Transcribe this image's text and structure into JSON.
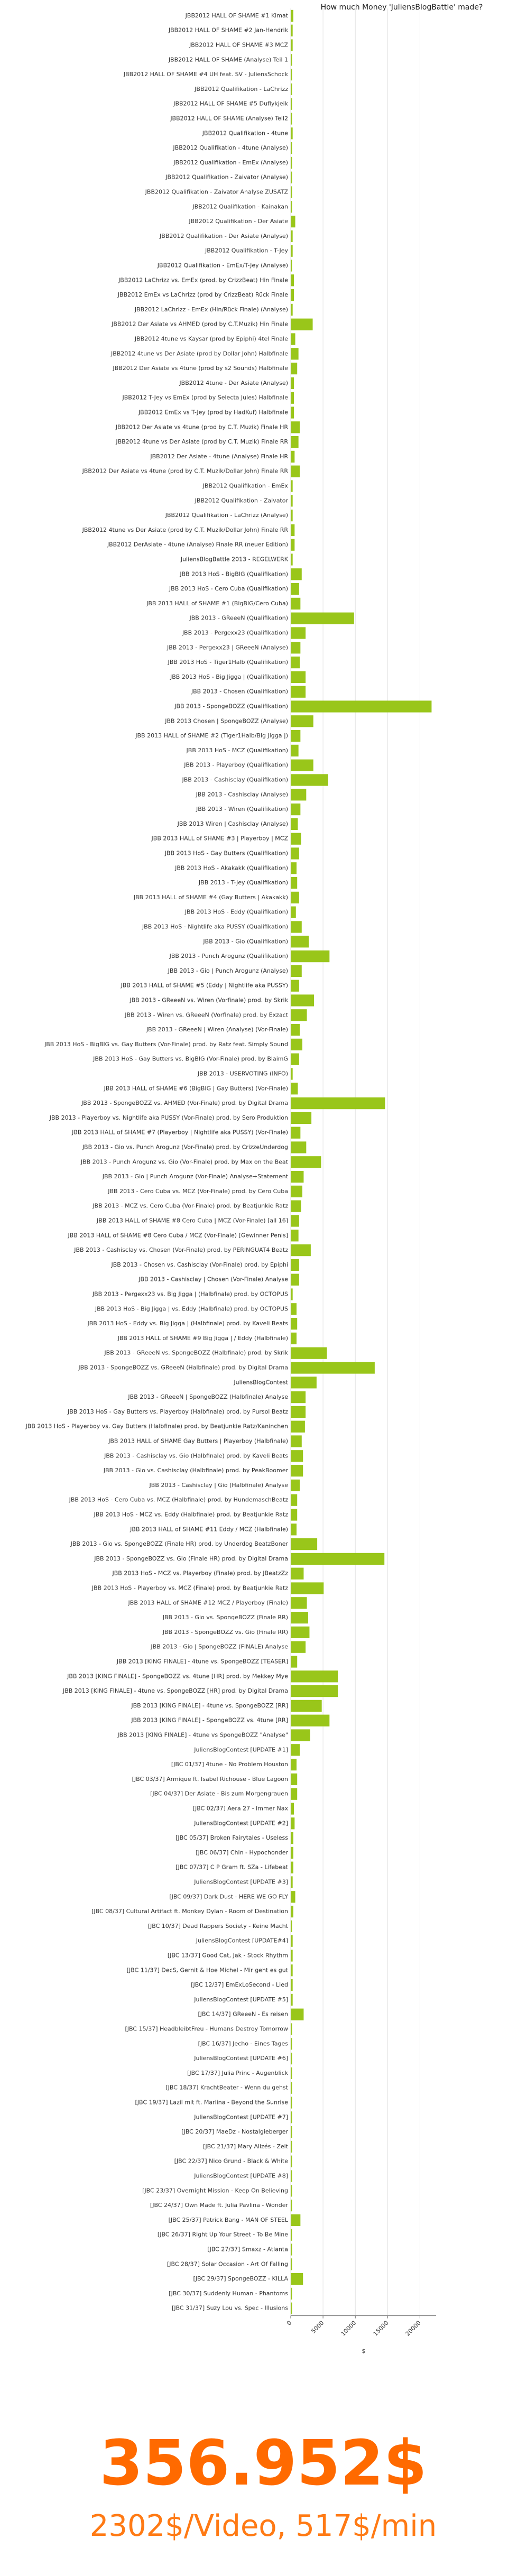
{
  "chart_data": {
    "type": "barh",
    "title": "How much Money 'JuliensBlogBattle' made?",
    "xlabel": "$",
    "total": "356.952$",
    "summary": "2302$/Video, 517$/min",
    "color": "#99c61a",
    "grid": true,
    "xlim": [
      0,
      22500
    ],
    "xticks": [
      0,
      5000,
      10000,
      15000,
      20000
    ],
    "categories": [
      "JBB2012 HALL OF SHAME #1 Kimat",
      "JBB2012 HALL OF SHAME #2 Jan-Hendrik",
      "JBB2012 HALL OF SHAME #3 MCZ",
      "JBB2012 HALL OF SHAME (Analyse) Teil 1",
      "JBB2012 HALL OF SHAME #4 UH feat. SV - JuliensSchock",
      "JBB2012 Qualifikation - LaChrizz",
      "JBB2012 HALL OF SHAME #5 Duflykjeik",
      "JBB2012 HALL OF SHAME (Analyse) Teil2",
      "JBB2012 Qualifikation - 4tune",
      "JBB2012 Qualifikation - 4tune (Analyse)",
      "JBB2012 Qualifikation - EmEx (Analyse)",
      "JBB2012 Qualifikation - Zaivator (Analyse)",
      "JBB2012 Qualifikation - Zaivator Analyse ZUSATZ",
      "JBB2012 Qualifikation - Kainakan",
      "JBB2012 Qualifikation - Der Asiate",
      "JBB2012 Qualifikation - Der Asiate (Analyse)",
      "JBB2012 Qualifikation - T-Jey",
      "JBB2012 Qualifikation - EmEx/T-Jey (Analyse)",
      "JBB2012 LaChrizz vs. EmEx (prod. by CrizzBeat) Hin Finale",
      "JBB2012 EmEx vs LaChrizz (prod by CrizzBeat) Rück Finale",
      "JBB2012 LaChrizz - EmEx (Hin/Rück Finale) (Analyse)",
      "JBB2012 Der Asiate vs AHMED (prod by C.T.Muzik) Hin Finale",
      "JBB2012 4tune vs Kaysar (prod by Epiphi) 4tel Finale",
      "JBB2012 4tune vs Der Asiate (prod by Dollar John) Halbfinale",
      "JBB2012 Der Asiate vs 4tune (prod by s2 Sounds) Halbfinale",
      "JBB2012 4tune - Der Asiate (Analyse)",
      "JBB2012 T-Jey vs EmEx (prod by Selecta Jules) Halbfinale",
      "JBB2012 EmEx vs T-Jey (prod by HadKuf) Halbfinale",
      "JBB2012 Der Asiate vs 4tune (prod by C.T. Muzik) Finale HR",
      "JBB2012 4tune vs Der Asiate (prod by C.T. Muzik) Finale RR",
      "JBB2012 Der Asiate - 4tune (Analyse) Finale HR",
      "JBB2012 Der Asiate vs 4tune (prod by C.T. Muzik/Dollar John) Finale RR",
      "JBB2012 Qualifikation - EmEx",
      "JBB2012 Qualifikation - Zaivator",
      "JBB2012 Qualifikation - LaChrizz (Analyse)",
      "JBB2012 4tune vs Der Asiate (prod by C.T. Muzik/Dollar John) Finale RR",
      "JBB2012 DerAsiate - 4tune (Analyse) Finale RR (neuer Edition)",
      "JuliensBlogBattle 2013 - REGELWERK",
      "JBB 2013 HoS - BigBIG (Qualifikation)",
      "JBB 2013 HoS - Cero Cuba (Qualifikation)",
      "JBB 2013 HALL of SHAME #1 (BigBIG/Cero Cuba)",
      "JBB 2013 - GReeeN (Qualifikation)",
      "JBB 2013 - Pergexx23 (Qualifikation)",
      "JBB 2013 - Pergexx23 | GReeeN (Analyse)",
      "JBB 2013 HoS - Tiger1Halb (Qualifikation)",
      "JBB 2013 HoS - Big Jigga | (Qualifikation)",
      "JBB 2013 - Chosen (Qualifikation)",
      "JBB 2013 - SpongeBOZZ (Qualifikation)",
      "JBB 2013 Chosen | SpongeBOZZ (Analyse)",
      "JBB 2013 HALL of SHAME #2 (Tiger1Halb/Big Jigga |)",
      "JBB 2013 HoS - MCZ (Qualifikation)",
      "JBB 2013 - Playerboy (Qualifikation)",
      "JBB 2013 - Cashisclay (Qualifikation)",
      "JBB 2013 - Cashisclay (Analyse)",
      "JBB 2013 - Wiren (Qualifikation)",
      "JBB 2013 Wiren | Cashisclay (Analyse)",
      "JBB 2013 HALL of SHAME #3 | Playerboy | MCZ",
      "JBB 2013 HoS - Gay Butters (Qualifikation)",
      "JBB 2013 HoS - Akakakk (Qualifikation)",
      "JBB 2013 - T-Jey (Qualifikation)",
      "JBB 2013 HALL of SHAME #4 (Gay Butters | Akakakk)",
      "JBB 2013 HoS - Eddy (Qualifikation)",
      "JBB 2013 HoS - Nightlife aka PUSSY (Qualifikation)",
      "JBB 2013 - Gio (Qualifikation)",
      "JBB 2013 - Punch Arogunz (Qualifikation)",
      "JBB 2013 - Gio | Punch Arogunz (Analyse)",
      "JBB 2013 HALL of SHAME #5 (Eddy | Nightlife aka PUSSY)",
      "JBB 2013 - GReeeN vs. Wiren (Vorfinale) prod. by Skrik",
      "JBB 2013 - Wiren vs. GReeeN (Vorfinale) prod. by Exzact",
      "JBB 2013 - GReeeN | Wiren (Analyse) (Vor-Finale)",
      "JBB 2013 HoS - BigBIG vs. Gay Butters (Vor-Finale) prod. by Ratz feat. Simply Sound",
      "JBB 2013 HoS - Gay Butters vs. BigBIG (Vor-Finale) prod. by BlaimG",
      "JBB 2013 - USERVOTING (INFO)",
      "JBB 2013 HALL of SHAME #6 (BigBIG | Gay Butters) (Vor-Finale)",
      "JBB 2013 - SpongeBOZZ vs. AHMED (Vor-Finale) prod. by Digital Drama",
      "JBB 2013 - Playerboy vs. Nightlife aka PUSSY (Vor-Finale) prod. by Sero Produktion",
      "JBB 2013 HALL of SHAME #7 (Playerboy | Nightlife aka PUSSY) (Vor-Finale)",
      "JBB 2013 - Gio vs. Punch Arogunz (Vor-Finale) prod. by CrizzeUnderdog",
      "JBB 2013 - Punch Arogunz vs. Gio (Vor-Finale) prod. by Max on the Beat",
      "JBB 2013 - Gio | Punch Arogunz (Vor-Finale) Analyse+Statement",
      "JBB 2013 - Cero Cuba vs. MCZ (Vor-Finale) prod. by Cero Cuba",
      "JBB 2013 - MCZ vs. Cero Cuba (Vor-Finale) prod. by Beatjunkie Ratz",
      "JBB 2013 HALL of SHAME #8 Cero Cuba | MCZ (Vor-Finale) [all 16]",
      "JBB 2013 HALL of SHAME #8 Cero Cuba / MCZ (Vor-Finale) [Gewinner Penis]",
      "JBB 2013 - Cashisclay vs. Chosen (Vor-Finale) prod. by PERINGUAT4 Beatz",
      "JBB 2013 - Chosen vs. Cashisclay (Vor-Finale) prod. by Epiphi",
      "JBB 2013 - Cashisclay | Chosen (Vor-Finale) Analyse",
      "JBB 2013 - Pergexx23 vs. Big Jigga | (Halbfinale) prod. by OCTOPUS",
      "JBB 2013 HoS - Big Jigga | vs. Eddy (Halbfinale) prod. by OCTOPUS",
      "JBB 2013 HoS - Eddy vs. Big Jigga | (Halbfinale) prod. by Kaveli Beats",
      "JBB 2013 HALL of SHAME #9 Big Jigga | / Eddy (Halbfinale)",
      "JBB 2013 - GReeeN vs. SpongeBOZZ (Halbfinale) prod. by Skrik",
      "JBB 2013 - SpongeBOZZ vs. GReeeN (Halbfinale) prod. by Digital Drama",
      "JuliensBlogContest",
      "JBB 2013 - GReeeN | SpongeBOZZ (Halbfinale) Analyse",
      "JBB 2013 HoS - Gay Butters vs. Playerboy (Halbfinale) prod. by Pursol Beatz",
      "JBB 2013 HoS - Playerboy vs. Gay Butters (Halbfinale) prod. by Beatjunkie Ratz/Kaninchen",
      "JBB 2013 HALL of SHAME Gay Butters | Playerboy (Halbfinale)",
      "JBB 2013 - Cashisclay vs. Gio (Halbfinale) prod. by Kaveli Beats",
      "JBB 2013 - Gio vs. Cashisclay (Halbfinale) prod. by PeakBoomer",
      "JBB 2013 - Cashisclay | Gio (Halbfinale) Analyse",
      "JBB 2013 HoS - Cero Cuba vs. MCZ (Halbfinale) prod. by HundemaschBeatz",
      "JBB 2013 HoS - MCZ vs. Eddy (Halbfinale) prod. by Beatjunkie Ratz",
      "JBB 2013 HALL of SHAME #11 Eddy / MCZ (Halbfinale)",
      "JBB 2013 - Gio vs. SpongeBOZZ (Finale HR) prod. by Underdog BeatzBoner",
      "JBB 2013 - SpongeBOZZ vs. Gio (Finale HR) prod. by Digital Drama",
      "JBB 2013 HoS - MCZ vs. Playerboy (Finale) prod. by JBeatzZz",
      "JBB 2013 HoS - Playerboy vs. MCZ (Finale) prod. by Beatjunkie Ratz",
      "JBB 2013 HALL of SHAME #12 MCZ / Playerboy (Finale)",
      "JBB 2013 - Gio vs. SpongeBOZZ (Finale RR)",
      "JBB 2013 - SpongeBOZZ vs. Gio (Finale RR)",
      "JBB 2013 - Gio | SpongeBOZZ (FINALE) Analyse",
      "JBB 2013 [KING FINALE] - 4tune vs. SpongeBOZZ [TEASER]",
      "JBB 2013 [KING FINALE] - SpongeBOZZ vs. 4tune [HR] prod. by Mekkey Mye",
      "JBB 2013 [KING FINALE] - 4tune vs. SpongeBOZZ [HR] prod. by Digital Drama",
      "JBB 2013 [KING FINALE] - 4tune vs. SpongeBOZZ [RR]",
      "JBB 2013 [KING FINALE] - SpongeBOZZ vs. 4tune [RR]",
      "JBB 2013 [KING FINALE] - 4tune vs SpongeBOZZ \"Analyse\"",
      "JuliensBlogContest [UPDATE #1]",
      "[JBC 01/37] 4tune - No Problem Houston",
      "[JBC 03/37] Armique ft. Isabel Richouse - Blue Lagoon",
      "[JBC 04/37] Der Asiate - Bis zum Morgengrauen",
      "[JBC 02/37] Aera 27 - Immer Nax",
      "JuliensBlogContest [UPDATE #2]",
      "[JBC 05/37] Broken Fairytales - Useless",
      "[JBC 06/37] Chin - Hypochonder",
      "[JBC 07/37] C P Gram ft. SZa - Lifebeat",
      "JuliensBlogContest [UPDATE #3]",
      "[JBC 09/37] Dark Dust - HERE WE GO FLY",
      "[JBC 08/37] Cultural Artifact ft. Monkey Dylan - Room of Destination",
      "[JBC 10/37] Dead Rappers Society - Keine Macht",
      "JuliensBlogContest [UPDATE#4]",
      "[JBC 13/37] Good Cat, Jak - Stock Rhythm",
      "[JBC 11/37] DecS, Gernit & Hoe Michel - Mir geht es gut",
      "[JBC 12/37] EmExLoSecond - Lied",
      "JuliensBlogContest [UPDATE #5]",
      "[JBC 14/37] GReeeN - Es reisen",
      "[JBC 15/37] HeadbleibtFreu - Humans Destroy Tomorrow",
      "[JBC 16/37] Jecho - Eines Tages",
      "JuliensBlogContest [UPDATE #6]",
      "[JBC 17/37] Julia Princ - Augenblick",
      "[JBC 18/37] KrachtBeater - Wenn du gehst",
      "[JBC 19/37] Lazil mit ft. Marlina - Beyond the Sunrise",
      "JuliensBlogContest [UPDATE #7]",
      "[JBC 20/37] MaeDz - Nostalgieberger",
      "[JBC 21/37] Mary Alizés - Zeit",
      "[JBC 22/37] Nico Grund - Black & White",
      "JuliensBlogContest [UPDATE #8]",
      "[JBC 23/37] Overnight Mission - Keep On Believing",
      "[JBC 24/37] Own Made ft. Julia Pavlina - Wonder",
      "[JBC 25/37] Patrick Bang - MAN OF STEEL",
      "[JBC 26/37] Right Up Your Street - To Be Mine",
      "[JBC 27/37] Smaxz - Atlanta",
      "[JBC 28/37] Solar Occasion - Art Of Falling",
      "[JBC 29/37] SpongeBOZZ - KILLA",
      "[JBC 30/37] Suddenly Human - Phantoms",
      "[JBC 31/37] Suzy Lou vs. Spec - Illusions"
    ],
    "values": [
      400,
      300,
      300,
      200,
      200,
      200,
      200,
      200,
      300,
      200,
      200,
      200,
      200,
      200,
      700,
      300,
      300,
      200,
      500,
      500,
      300,
      3400,
      700,
      1200,
      1000,
      500,
      500,
      500,
      1400,
      1200,
      600,
      1400,
      300,
      300,
      300,
      600,
      600,
      300,
      1700,
      1300,
      1500,
      9800,
      2300,
      1500,
      1400,
      2300,
      2300,
      21800,
      3500,
      1500,
      1200,
      3500,
      5800,
      2400,
      1500,
      1100,
      1600,
      1300,
      900,
      1000,
      1300,
      800,
      1700,
      2800,
      6000,
      1700,
      1300,
      3600,
      2500,
      1400,
      1800,
      1300,
      300,
      1100,
      14600,
      3200,
      1500,
      2400,
      4700,
      2000,
      1800,
      1600,
      1300,
      1200,
      3100,
      1300,
      1300,
      300,
      900,
      1000,
      900,
      5600,
      13000,
      4000,
      2300,
      2300,
      2200,
      1700,
      1900,
      1900,
      1400,
      1000,
      1000,
      900,
      4100,
      14500,
      2000,
      5100,
      2500,
      2700,
      2900,
      2300,
      1000,
      7300,
      7300,
      4800,
      6000,
      3000,
      1400,
      900,
      1000,
      1000,
      500,
      600,
      400,
      400,
      400,
      300,
      700,
      400,
      200,
      300,
      300,
      300,
      300,
      300,
      2000,
      200,
      200,
      200,
      200,
      200,
      200,
      200,
      200,
      200,
      200,
      200,
      200,
      200,
      1500,
      200,
      200,
      200,
      1900,
      200,
      200
    ]
  }
}
